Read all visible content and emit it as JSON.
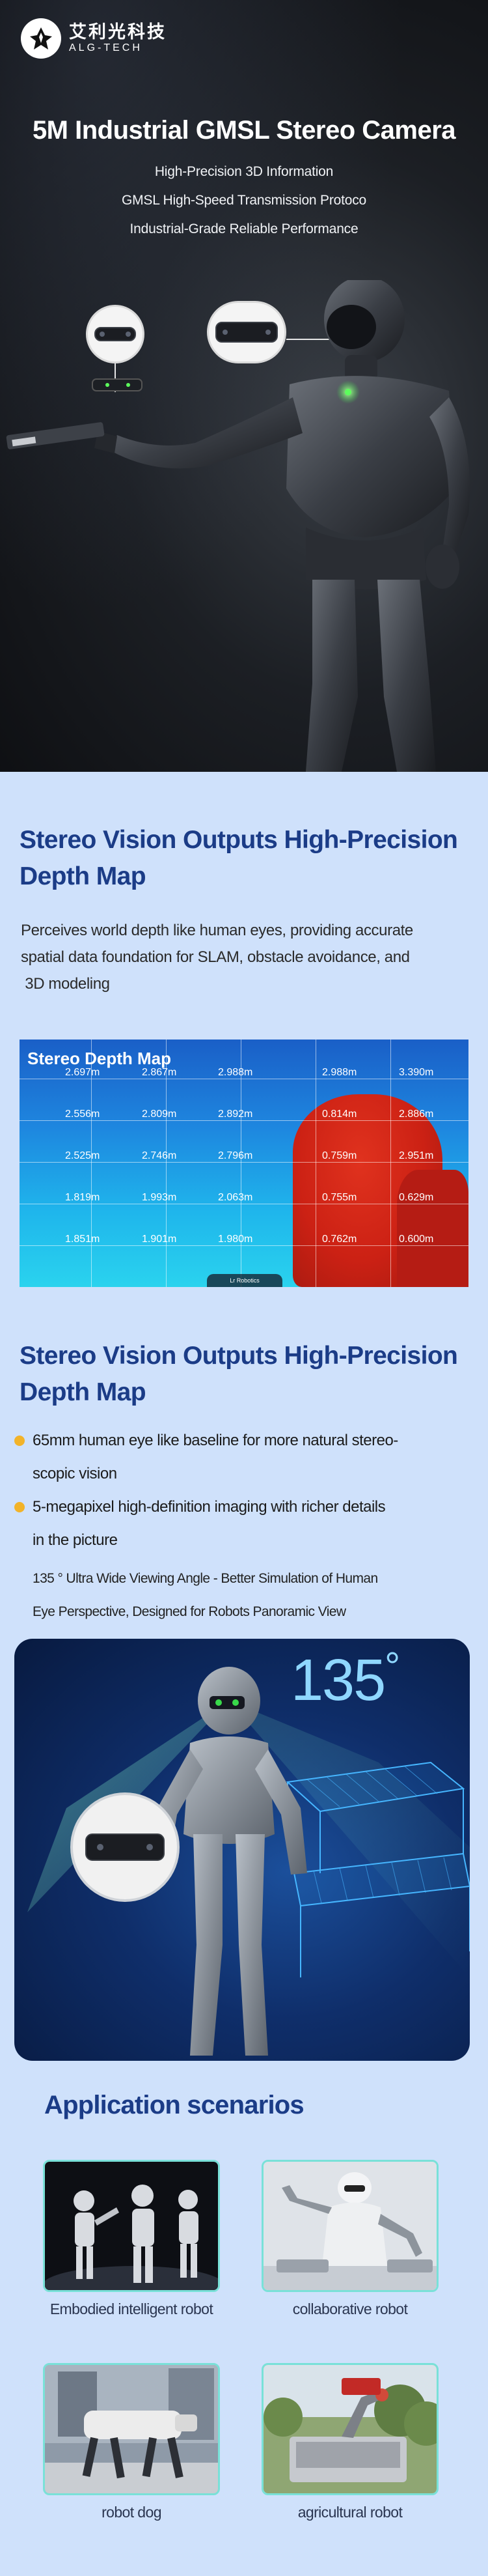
{
  "brand": {
    "name_cn": "艾利光科技",
    "name_en": "ALG-TECH"
  },
  "hero": {
    "title": "5M Industrial GMSL Stereo Camera",
    "subtitles": [
      "High-Precision 3D Information",
      "GMSL High-Speed Transmission Protoco",
      "Industrial-Grade Reliable Performance"
    ]
  },
  "section1": {
    "title_line1": "Stereo Vision Outputs High-Precision",
    "title_line2": "Depth Map",
    "body_lines": [
      "Perceives world depth like human eyes, providing accurate",
      "spatial data foundation for SLAM, obstacle avoidance, and",
      " 3D modeling"
    ],
    "depth_map": {
      "title": "Stereo Depth Map",
      "rows": [
        [
          "2.697m",
          "2.867m",
          "2.988m",
          "2.988m",
          "3.390m"
        ],
        [
          "2.556m",
          "2.809m",
          "2.892m",
          "0.814m",
          "2.886m"
        ],
        [
          "2.525m",
          "2.746m",
          "2.796m",
          "0.759m",
          "2.951m"
        ],
        [
          "1.819m",
          "1.993m",
          "2.063m",
          "0.755m",
          "0.629m"
        ],
        [
          "1.851m",
          "1.901m",
          "1.980m",
          "0.762m",
          "0.600m"
        ]
      ],
      "footer_label": "Lr Robotics"
    }
  },
  "section2": {
    "title_line1": "Stereo Vision Outputs High-Precision",
    "title_line2": "Depth Map",
    "bullets": [
      [
        "65mm human eye like baseline for more natural stereo-",
        "scopic vision"
      ],
      [
        "5-megapixel high-definition imaging with richer details",
        "in the picture"
      ]
    ],
    "note_lines": [
      "135 ° Ultra Wide Viewing Angle - Better Simulation of Human",
      "Eye Perspective, Designed for Robots Panoramic View"
    ],
    "angle_value": "135",
    "angle_unit": "°"
  },
  "applications": {
    "title": "Application scenarios",
    "items": [
      {
        "label": "Embodied intelligent robot"
      },
      {
        "label": "collaborative robot"
      },
      {
        "label": "robot dog"
      },
      {
        "label": "agricultural robot"
      }
    ]
  },
  "colors": {
    "title_blue": "#1b3c87",
    "bullet_yellow": "#f2b329",
    "card_border": "#79e1d8",
    "robot_eye_green": "#39d94a"
  }
}
